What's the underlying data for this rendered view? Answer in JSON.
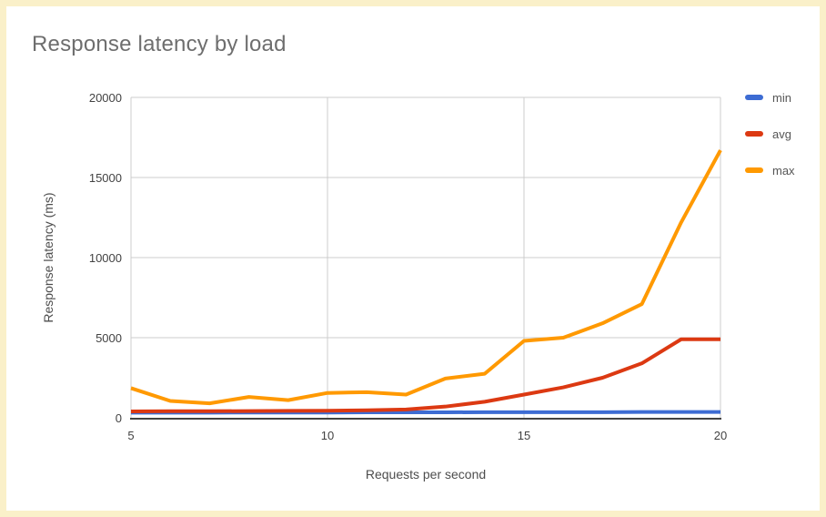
{
  "page": {
    "background": "#ffffff",
    "border_color": "#FAF0C9"
  },
  "colors": {
    "grid": "#cccccc",
    "axis_line": "#424242",
    "tick_text": "#424242",
    "title_text": "#6E6E6E",
    "axis_title_text": "#4D4D4D",
    "legend_text": "#555555"
  },
  "chart_data": {
    "type": "line",
    "title": "Response latency by load",
    "xlabel": "Requests per second",
    "ylabel": "Response latency (ms)",
    "xlim": [
      5,
      20
    ],
    "ylim": [
      0,
      20000
    ],
    "xticks": [
      5,
      10,
      15,
      20
    ],
    "yticks": [
      0,
      5000,
      10000,
      15000,
      20000
    ],
    "grid": true,
    "legend_position": "right",
    "x": [
      5,
      6,
      7,
      8,
      9,
      10,
      11,
      12,
      13,
      14,
      15,
      16,
      17,
      18,
      19,
      20
    ],
    "series": [
      {
        "name": "min",
        "color": "#3D6CD3",
        "values": [
          320,
          320,
          320,
          330,
          330,
          330,
          340,
          340,
          340,
          350,
          350,
          350,
          350,
          360,
          360,
          360
        ]
      },
      {
        "name": "avg",
        "color": "#DC3912",
        "values": [
          400,
          410,
          410,
          420,
          430,
          440,
          470,
          520,
          700,
          1000,
          1450,
          1900,
          2500,
          3400,
          4900,
          4900
        ]
      },
      {
        "name": "max",
        "color": "#FF9900",
        "values": [
          1850,
          1050,
          900,
          1300,
          1100,
          1550,
          1600,
          1450,
          2450,
          2750,
          4800,
          5000,
          5900,
          7100,
          12200,
          16700
        ]
      }
    ]
  }
}
